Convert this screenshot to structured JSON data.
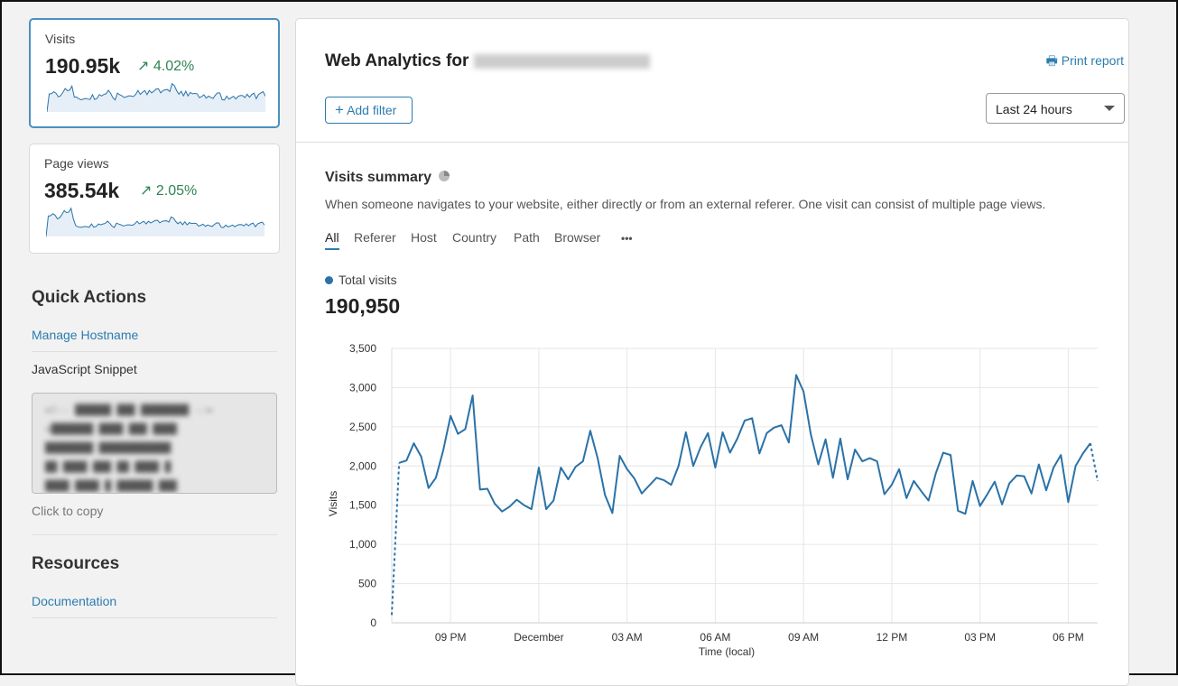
{
  "metrics": [
    {
      "label": "Visits",
      "value": "190.95k",
      "change": "4.02%",
      "trend": "up",
      "selected": true
    },
    {
      "label": "Page views",
      "value": "385.54k",
      "change": "2.05%",
      "trend": "up",
      "selected": false
    }
  ],
  "quick_actions": {
    "title": "Quick Actions",
    "manage_hostname": "Manage Hostname",
    "snippet_label": "JavaScript Snippet",
    "click_to_copy": "Click to copy"
  },
  "resources": {
    "title": "Resources",
    "documentation": "Documentation"
  },
  "header": {
    "title": "Web Analytics for",
    "print_report": "Print report",
    "add_filter": "Add filter",
    "time_range": "Last 24 hours"
  },
  "summary": {
    "title": "Visits summary",
    "description": "When someone navigates to your website, either directly or from an external referer. One visit can consist of multiple page views.",
    "tabs": [
      "All",
      "Referer",
      "Host",
      "Country",
      "Path",
      "Browser"
    ],
    "more": "•••",
    "legend": "Total visits",
    "total": "190,950"
  },
  "colors": {
    "accent": "#2c7cb0",
    "line": "#2a72a8",
    "positive": "#2f8353"
  },
  "chart_data": {
    "type": "line",
    "xlabel": "Time (local)",
    "ylabel": "Visits",
    "ylim": [
      0,
      3500
    ],
    "yticks": [
      "0",
      "500",
      "1,000",
      "1,500",
      "2,000",
      "2,500",
      "3,000",
      "3,500"
    ],
    "xticks": [
      "09 PM",
      "December",
      "03 AM",
      "06 AM",
      "09 AM",
      "12 PM",
      "03 PM",
      "06 PM"
    ],
    "interval": "15 min",
    "grid": true,
    "series": [
      {
        "name": "Total visits",
        "values": [
          100,
          2040,
          2070,
          2290,
          2120,
          1720,
          1850,
          2200,
          2640,
          2410,
          2470,
          2900,
          1700,
          1710,
          1520,
          1420,
          1480,
          1570,
          1500,
          1450,
          1980,
          1450,
          1560,
          1980,
          1830,
          1990,
          2060,
          2450,
          2100,
          1630,
          1400,
          2130,
          1960,
          1840,
          1650,
          1750,
          1850,
          1820,
          1760,
          2000,
          2430,
          2000,
          2240,
          2420,
          1980,
          2430,
          2170,
          2350,
          2580,
          2610,
          2160,
          2420,
          2490,
          2520,
          2300,
          3160,
          2950,
          2400,
          2020,
          2340,
          1850,
          2350,
          1830,
          2210,
          2060,
          2100,
          2060,
          1640,
          1760,
          1960,
          1590,
          1810,
          1680,
          1560,
          1910,
          2170,
          2140,
          1430,
          1390,
          1810,
          1490,
          1640,
          1800,
          1510,
          1780,
          1880,
          1870,
          1650,
          2020,
          1690,
          1980,
          2140,
          1540,
          2000,
          2160,
          2290,
          1810
        ]
      }
    ]
  }
}
